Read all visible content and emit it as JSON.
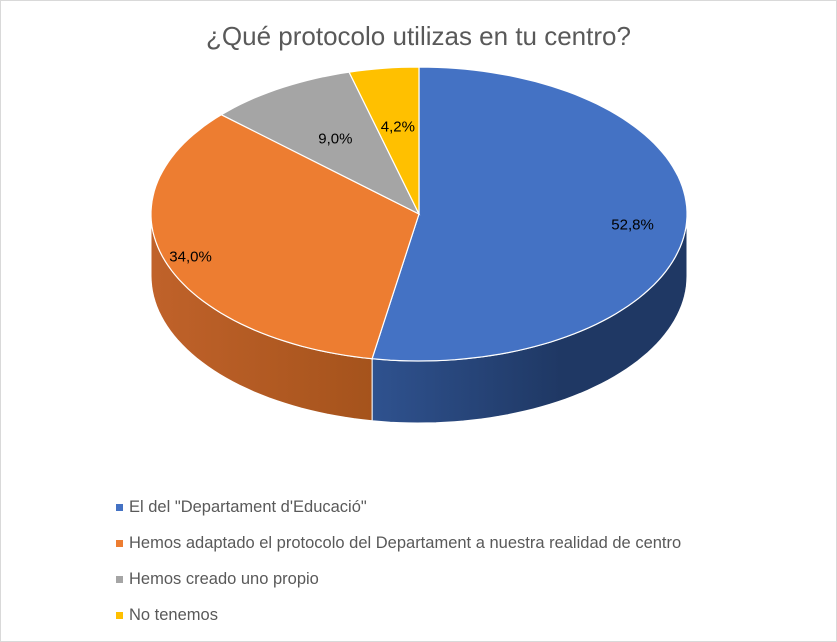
{
  "chart_data": {
    "type": "pie",
    "title": "¿Qué protocolo utilizas en tu centro?",
    "legend_position": "bottom-left",
    "slices": [
      {
        "label": "El del \"Departament d'Educació\"",
        "value": 52.8,
        "display": "52,8%",
        "color": "#4472C4",
        "side_color": "#1F3864"
      },
      {
        "label": "Hemos adaptado el protocolo del Departament a nuestra realidad de centro",
        "value": 34.0,
        "display": "34,0%",
        "color": "#ED7D31",
        "side_color": "#A5531C"
      },
      {
        "label": "Hemos creado uno propio",
        "value": 9.0,
        "display": "9,0%",
        "color": "#A5A5A5",
        "side_color": "#6E6E6E"
      },
      {
        "label": "No tenemos",
        "value": 4.2,
        "display": "4,2%",
        "color": "#FFC000",
        "side_color": "#B38600"
      }
    ]
  }
}
